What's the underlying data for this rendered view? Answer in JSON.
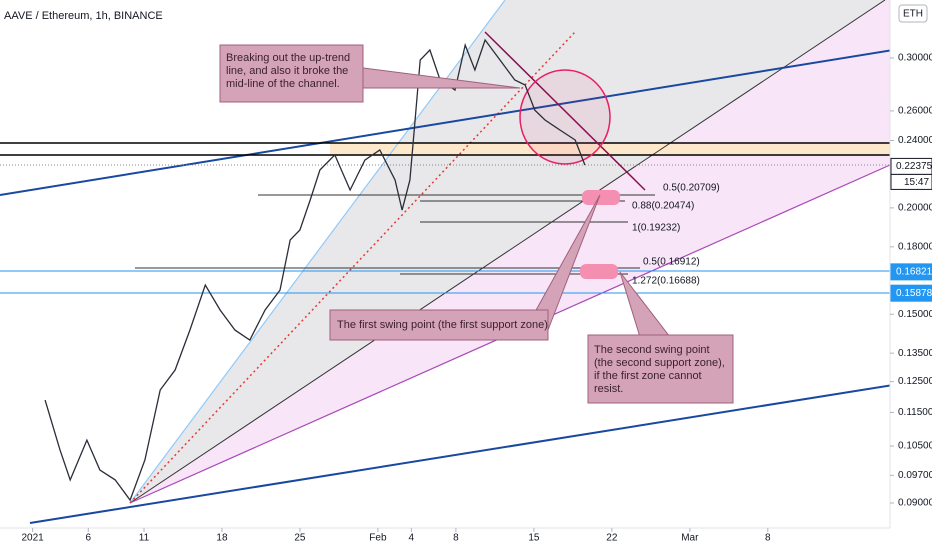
{
  "chart_data": {
    "type": "line",
    "title": "AAVE / Ethereum, 1h, BINANCE",
    "currency": "ETH",
    "color": "#2a2e39",
    "log_scale": true,
    "x": [
      "2021-01-02T03:00",
      "2021-01-03T11:00",
      "2021-01-04T09:00",
      "2021-01-05T21:00",
      "2021-01-07T01:00",
      "2021-01-08T10:00",
      "2021-01-09T18:00",
      "2021-01-11T02:00",
      "2021-01-12T11:00",
      "2021-01-13T19:00",
      "2021-01-15T03:00",
      "2021-01-16T12:00",
      "2021-01-17T20:00",
      "2021-01-19T04:00",
      "2021-01-20T12:00",
      "2021-01-21T21:00",
      "2021-01-23T05:00",
      "2021-01-24T03:00",
      "2021-01-25T00:00",
      "2021-01-25T22:00",
      "2021-01-26T19:00",
      "2021-01-28T03:00",
      "2021-01-29T12:00",
      "2021-01-30T20:00",
      "2021-02-01T04:00",
      "2021-02-02T13:00",
      "2021-02-03T04:00",
      "2021-02-03T21:00",
      "2021-02-04T08:00",
      "2021-02-04T19:00",
      "2021-02-05T16:00",
      "2021-02-06T14:00",
      "2021-02-07T22:00",
      "2021-02-08T20:00",
      "2021-02-09T17:00",
      "2021-02-10T15:00",
      "2021-02-11T23:00",
      "2021-02-13T07:00",
      "2021-02-14T05:00",
      "2021-02-15T02:00",
      "2021-02-16T00:00",
      "2021-02-17T08:00",
      "2021-02-18T17:00",
      "2021-02-19T14:00"
    ],
    "values": [
      0.1189,
      0.1039,
      0.0958,
      0.1067,
      0.0984,
      0.0958,
      0.0907,
      0.1011,
      0.1222,
      0.129,
      0.1437,
      0.1623,
      0.1517,
      0.1437,
      0.1399,
      0.1517,
      0.1601,
      0.1834,
      0.1884,
      0.2043,
      0.2216,
      0.2308,
      0.2099,
      0.2276,
      0.2339,
      0.2156,
      0.1988,
      0.2156,
      0.2537,
      0.2984,
      0.3066,
      0.2827,
      0.2751,
      0.3107,
      0.2904,
      0.315,
      0.2984,
      0.2827,
      0.2789,
      0.2606,
      0.2537,
      0.2469,
      0.2403,
      0.2246
    ],
    "xlim": [
      "2021-01-01T00:00",
      "2021-03-18T00:00"
    ],
    "xticks": [
      {
        "value": "2021-01-01T00:00",
        "label": "2021"
      },
      {
        "value": "2021-01-06T00:00",
        "label": "6"
      },
      {
        "value": "2021-01-11T00:00",
        "label": "11"
      },
      {
        "value": "2021-01-18T00:00",
        "label": "18"
      },
      {
        "value": "2021-01-25T00:00",
        "label": "25"
      },
      {
        "value": "2021-02-01T00:00",
        "label": "Feb"
      },
      {
        "value": "2021-02-04T00:00",
        "label": "4"
      },
      {
        "value": "2021-02-08T00:00",
        "label": "8"
      },
      {
        "value": "2021-02-15T00:00",
        "label": "15"
      },
      {
        "value": "2021-02-22T00:00",
        "label": "22"
      },
      {
        "value": "2021-03-01T00:00",
        "label": "Mar"
      },
      {
        "value": "2021-03-08T00:00",
        "label": "8"
      }
    ],
    "ylim": [
      0.0848,
      0.351
    ],
    "yticks": [
      {
        "value": 0.3,
        "label": "0.30000"
      },
      {
        "value": 0.26,
        "label": "0.26000"
      },
      {
        "value": 0.24,
        "label": "0.24000"
      },
      {
        "value": 0.2,
        "label": "0.20000"
      },
      {
        "value": 0.18,
        "label": "0.18000"
      },
      {
        "value": 0.15,
        "label": "0.15000"
      },
      {
        "value": 0.135,
        "label": "0.13500"
      },
      {
        "value": 0.125,
        "label": "0.12500"
      },
      {
        "value": 0.115,
        "label": "0.11500"
      },
      {
        "value": 0.105,
        "label": "0.10500"
      },
      {
        "value": 0.097,
        "label": "0.09700"
      },
      {
        "value": 0.09,
        "label": "0.09000"
      }
    ],
    "price_labels": [
      {
        "value": 0.22375,
        "label": "0.22375",
        "color": "#ffffff"
      },
      {
        "value": 0.16821,
        "label": "0.16821",
        "color": "#2196f3"
      },
      {
        "value": 0.15878,
        "label": "0.15878",
        "color": "#2196f3"
      }
    ],
    "countdown": "15:47",
    "fib_labels": [
      "0.5(0.20709)",
      "0.88(0.20474)",
      "1(0.19232)",
      "0.5(0.16912)",
      "1.272(0.16688)"
    ],
    "annotations": [
      [
        "Breaking out the up-trend",
        "line, and also it broke the",
        "mid-line of the channel."
      ],
      [
        "The first swing point (the first support zone)"
      ],
      [
        "The second swing point",
        "(the second support zone),",
        "if the first zone cannot",
        "resist."
      ]
    ]
  }
}
